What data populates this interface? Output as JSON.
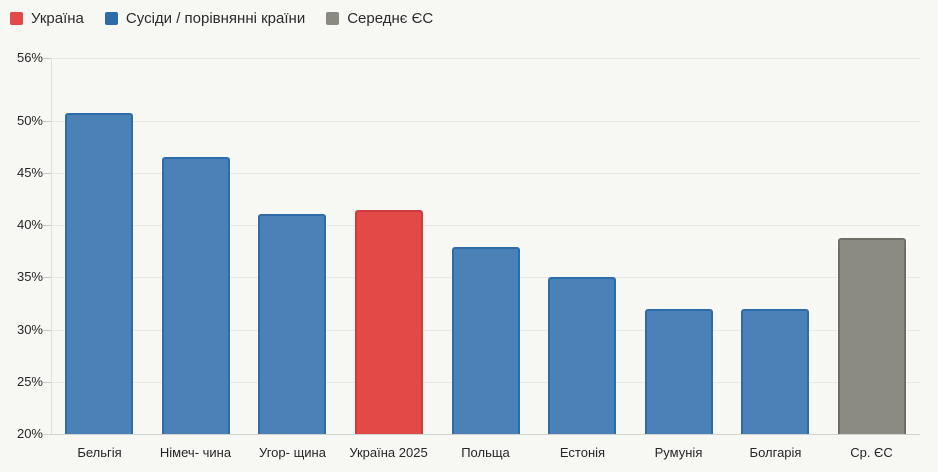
{
  "legend": {
    "items": [
      {
        "label": "Україна",
        "color": "#e24947",
        "key": "ukraine"
      },
      {
        "label": "Сусіди / порівнянні країни",
        "color": "#2d6ca6",
        "key": "neighbor"
      },
      {
        "label": "Середнє ЄС",
        "color": "#8a8a82",
        "key": "eu_avg"
      }
    ]
  },
  "chart_data": {
    "type": "bar",
    "title": "",
    "xlabel": "",
    "ylabel": "",
    "categories": [
      "Бельгія",
      "Німеч- чина",
      "Угор- щина",
      "Україна 2025",
      "Польща",
      "Естонія",
      "Румунія",
      "Болгарія",
      "Ср. ЄС"
    ],
    "values": [
      50.7,
      46.5,
      41.1,
      41.4,
      37.9,
      35.0,
      32.0,
      32.0,
      38.8
    ],
    "groups": [
      "neighbor",
      "neighbor",
      "neighbor",
      "ukraine",
      "neighbor",
      "neighbor",
      "neighbor",
      "neighbor",
      "eu_avg"
    ],
    "colors": {
      "ukraine": {
        "fill": "#e24a48",
        "stroke": "#ce3d3b"
      },
      "neighbor": {
        "fill": "#4a82b8",
        "stroke": "#2e6ca8"
      },
      "eu_avg": {
        "fill": "#8b8b83",
        "stroke": "#6f6f67"
      }
    },
    "ylim": [
      20,
      56
    ],
    "yticks": [
      56,
      50,
      45,
      40,
      35,
      30,
      25,
      20
    ],
    "ytick_suffix": "%",
    "grid": true,
    "legend_position": "top-left",
    "background": "#f7f7f4"
  }
}
